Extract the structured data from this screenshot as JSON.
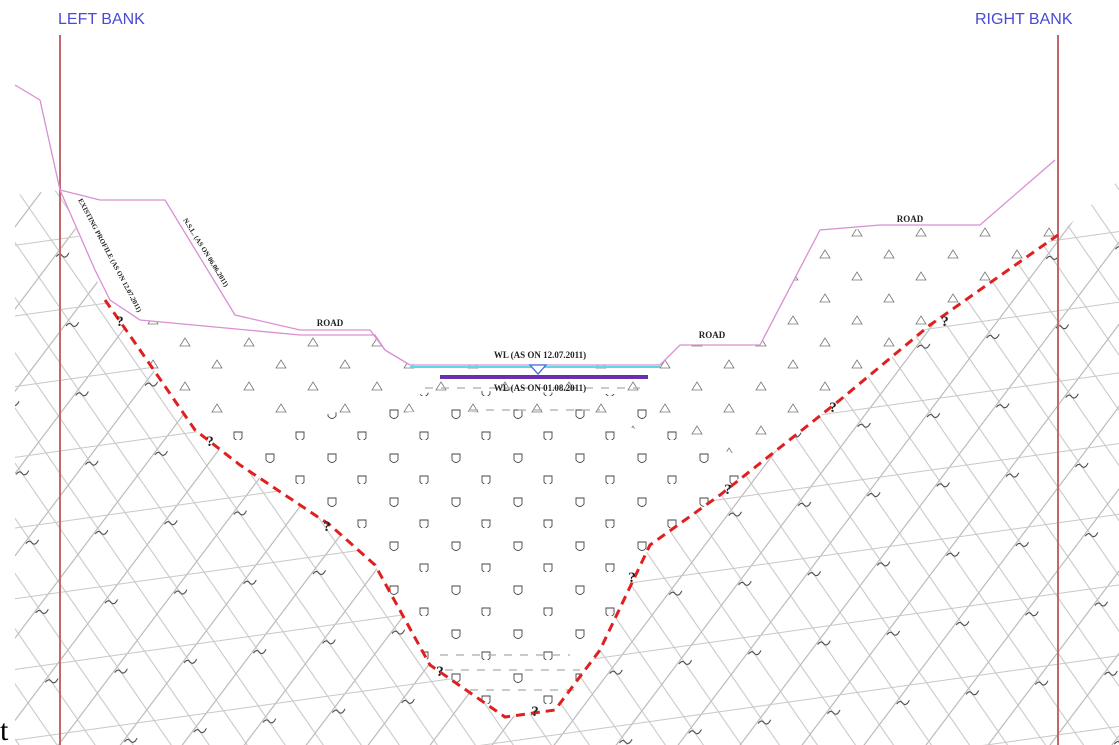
{
  "banks": {
    "left": "LEFT BANK",
    "right": "RIGHT BANK"
  },
  "roads": [
    "ROAD",
    "ROAD",
    "ROAD"
  ],
  "water_levels": [
    "WL (AS ON 12.07.2011)",
    "WL (AS ON 01.08.2011)"
  ],
  "profile_labels": [
    "EXISTING PROFILE (AS ON 12.07.2011)",
    "N.S.L. (AS ON 06.06.2011)"
  ],
  "bedrock_markers": [
    "?",
    "?",
    "?",
    "?",
    "?",
    "?",
    "?",
    "?",
    "?"
  ],
  "fragment": "t"
}
